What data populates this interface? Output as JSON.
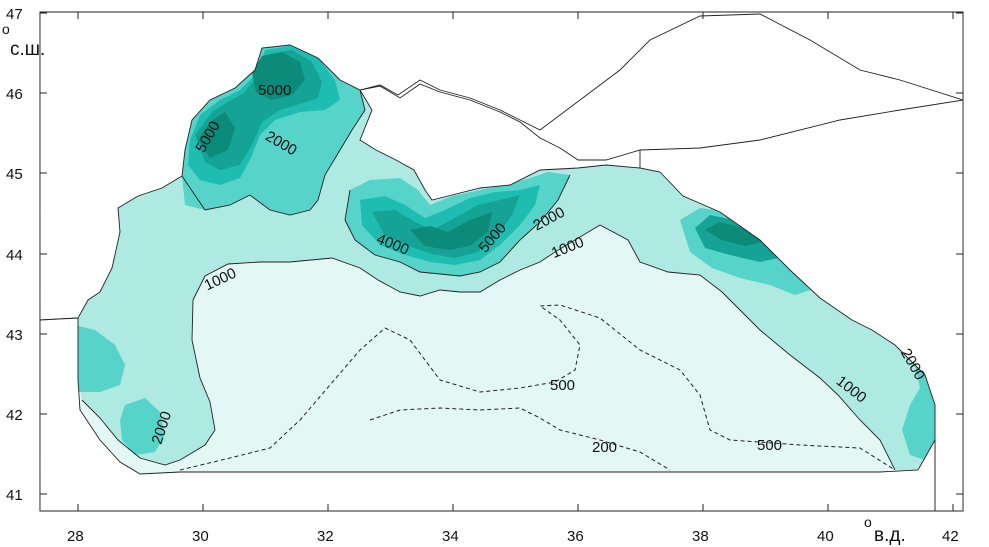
{
  "map": {
    "colors": {
      "lt_200": "#ffffff",
      "c200_500": "#e3f7f5",
      "c500_1000": "#e3f7f5",
      "c1000_2000": "#aee9e2",
      "c2000_3000": "#56d4c9",
      "c3000_4000": "#1fbcb2",
      "c4000_5000": "#14a394",
      "gt_5000": "#0c8a7a"
    },
    "axes": {
      "x_ticks": [
        "28",
        "30",
        "32",
        "34",
        "36",
        "38",
        "40",
        "42"
      ],
      "y_ticks": [
        "41",
        "42",
        "43",
        "44",
        "45",
        "46",
        "47"
      ],
      "x_unit": "в.д.",
      "y_unit": "с.ш.",
      "degree_symbol": "o"
    },
    "contour_labels": [
      {
        "text": "5000",
        "id": "north-5000"
      },
      {
        "text": "5000",
        "id": "west-5000"
      },
      {
        "text": "2000",
        "id": "shelf-2000"
      },
      {
        "text": "4000",
        "id": "crimea-4000"
      },
      {
        "text": "5000",
        "id": "crimea-5000"
      },
      {
        "text": "2000",
        "id": "crimea-2000"
      },
      {
        "text": "1000",
        "id": "crimea-1000"
      },
      {
        "text": "1000",
        "id": "west-1000"
      },
      {
        "text": "2000",
        "id": "sw-2000"
      },
      {
        "text": "500",
        "id": "center-500"
      },
      {
        "text": "200",
        "id": "south-200"
      },
      {
        "text": "500",
        "id": "se-500"
      },
      {
        "text": "1000",
        "id": "east-1000"
      },
      {
        "text": "2000",
        "id": "east-2000"
      }
    ]
  }
}
